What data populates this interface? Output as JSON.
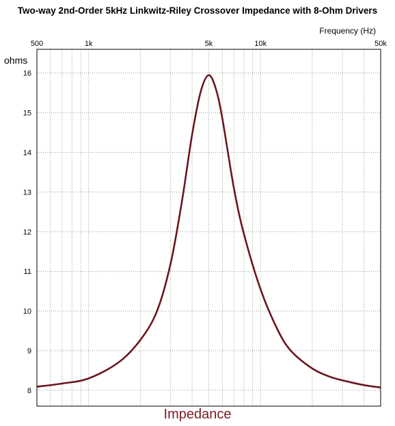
{
  "page": {
    "title": "Two-way 2nd-Order 5kHz Linkwitz-Riley Crossover Impedance with 8-Ohm Drivers",
    "footer": "Impedance"
  },
  "chart_data": {
    "type": "line",
    "title": "Two-way 2nd-Order 5kHz Linkwitz-Riley Crossover Impedance with 8-Ohm Drivers",
    "xlabel": "Frequency  (Hz)",
    "ylabel": "ohms",
    "x_scale": "log",
    "xlim": [
      500,
      50000
    ],
    "ylim": [
      7.6,
      16.6
    ],
    "x_ticks": [
      500,
      1000,
      5000,
      10000,
      50000
    ],
    "x_tick_labels": [
      "500",
      "1k",
      "5k",
      "10k",
      "50k"
    ],
    "y_ticks": [
      8,
      9,
      10,
      11,
      12,
      13,
      14,
      15,
      16
    ],
    "y_tick_labels": [
      "8",
      "9",
      "10",
      "11",
      "12",
      "13",
      "14",
      "15",
      "16"
    ],
    "grid": true,
    "line_color": "#6b1520",
    "series": [
      {
        "x": [
          500,
          700,
          1000,
          1500,
          2000,
          2500,
          3000,
          3500,
          4000,
          4500,
          5000,
          5500,
          6000,
          7000,
          8000,
          10000,
          12500,
          15000,
          20000,
          25000,
          30000,
          40000,
          50000
        ],
        "values": [
          8.09,
          8.17,
          8.3,
          8.71,
          9.27,
          10.0,
          11.2,
          12.8,
          14.45,
          15.55,
          15.95,
          15.6,
          14.85,
          13.1,
          11.95,
          10.55,
          9.55,
          9.0,
          8.55,
          8.35,
          8.25,
          8.13,
          8.07
        ]
      }
    ]
  }
}
